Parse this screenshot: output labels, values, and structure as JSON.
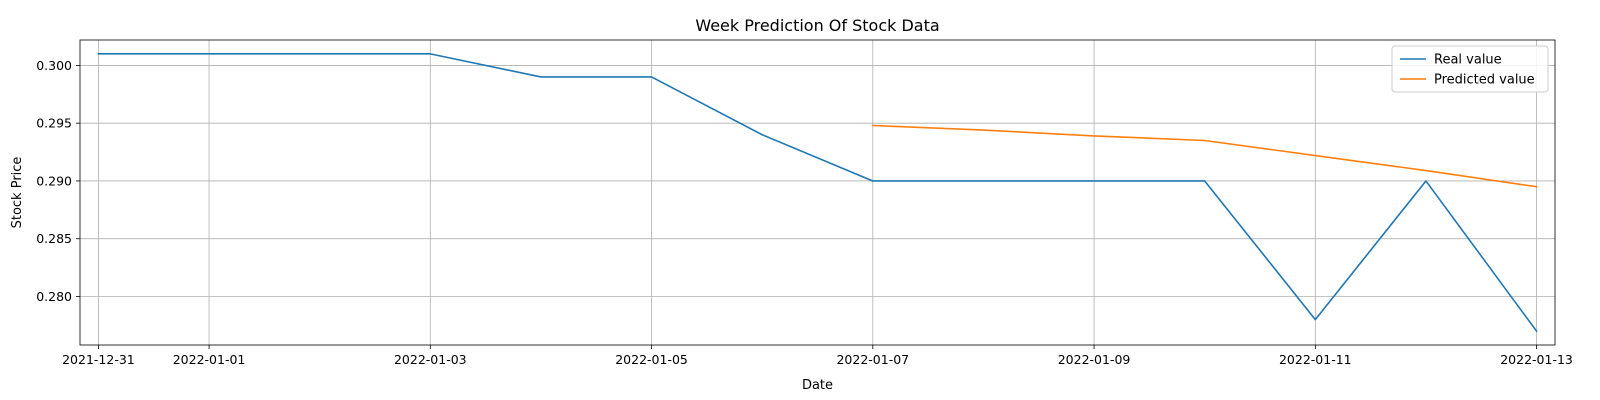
{
  "chart_data": {
    "type": "line",
    "title": "Week Prediction Of Stock Data",
    "xlabel": "Date",
    "ylabel": "Stock Price",
    "xlim": [
      "2021-12-30T20:00",
      "2022-01-13T04:00"
    ],
    "ylim": [
      0.2758,
      0.3022
    ],
    "x_ticks": [
      "2021-12-31",
      "2022-01-01",
      "2022-01-03",
      "2022-01-05",
      "2022-01-07",
      "2022-01-09",
      "2022-01-11",
      "2022-01-13"
    ],
    "y_ticks": [
      "0.280",
      "0.285",
      "0.290",
      "0.295",
      "0.300"
    ],
    "y_tick_values": [
      0.28,
      0.285,
      0.29,
      0.295,
      0.3
    ],
    "grid": true,
    "legend_position": "top-right",
    "series": [
      {
        "name": "Real value",
        "color": "#1f77b4",
        "x": [
          "2021-12-31",
          "2022-01-01",
          "2022-01-03",
          "2022-01-04",
          "2022-01-05",
          "2022-01-06",
          "2022-01-07",
          "2022-01-08",
          "2022-01-09",
          "2022-01-10",
          "2022-01-11",
          "2022-01-12",
          "2022-01-13"
        ],
        "values": [
          0.301,
          0.301,
          0.301,
          0.299,
          0.299,
          0.294,
          0.29,
          0.29,
          0.29,
          0.29,
          0.278,
          0.29,
          0.277
        ]
      },
      {
        "name": "Predicted value",
        "color": "#ff7f0e",
        "x": [
          "2022-01-07",
          "2022-01-08",
          "2022-01-09",
          "2022-01-10",
          "2022-01-11",
          "2022-01-12",
          "2022-01-13"
        ],
        "values": [
          0.2948,
          0.2944,
          0.2939,
          0.2935,
          0.2922,
          0.2909,
          0.2895
        ]
      }
    ]
  }
}
